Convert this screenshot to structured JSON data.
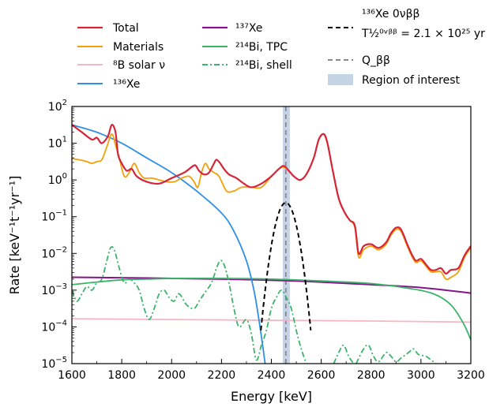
{
  "chart_data": {
    "type": "line",
    "xlabel": "Energy [keV]",
    "ylabel": "Rate [keV⁻¹t⁻¹yr⁻¹]",
    "xlim": [
      1600,
      3200
    ],
    "ylim_log10": [
      -5,
      2
    ],
    "y_scale": "log",
    "x_ticks": [
      1600,
      1800,
      2000,
      2200,
      2400,
      2600,
      2800,
      3000,
      3200
    ],
    "x_tick_labels": [
      "1600",
      "1800",
      "2000",
      "2200",
      "2400",
      "2600",
      "2800",
      "3000",
      "3200"
    ],
    "y_tick_powers": [
      2,
      1,
      0,
      -1,
      -2,
      -3,
      -4,
      -5
    ],
    "legend_placement": "above plot",
    "roi": {
      "label": "Region of interest",
      "x0": 2446,
      "x1": 2474,
      "color": "#c5d3e6"
    },
    "q_bb": {
      "label": "Q_ββ",
      "x": 2458,
      "color": "#888888"
    },
    "series": [
      {
        "key": "total",
        "name": "Total",
        "color": "#d62438",
        "width": 2.2,
        "dash": "",
        "points": [
          [
            1600,
            1.5
          ],
          [
            1640,
            1.3
          ],
          [
            1680,
            1.1
          ],
          [
            1700,
            1.15
          ],
          [
            1720,
            1.0
          ],
          [
            1745,
            1.2
          ],
          [
            1760,
            1.5
          ],
          [
            1775,
            1.3
          ],
          [
            1785,
            0.7
          ],
          [
            1800,
            0.45
          ],
          [
            1820,
            0.25
          ],
          [
            1840,
            0.3
          ],
          [
            1860,
            0.1
          ],
          [
            1900,
            -0.05
          ],
          [
            1950,
            -0.1
          ],
          [
            2000,
            0.05
          ],
          [
            2050,
            0.2
          ],
          [
            2080,
            0.35
          ],
          [
            2095,
            0.4
          ],
          [
            2110,
            0.25
          ],
          [
            2130,
            0.15
          ],
          [
            2150,
            0.2
          ],
          [
            2170,
            0.45
          ],
          [
            2180,
            0.55
          ],
          [
            2195,
            0.45
          ],
          [
            2210,
            0.3
          ],
          [
            2230,
            0.15
          ],
          [
            2260,
            0.05
          ],
          [
            2290,
            -0.1
          ],
          [
            2320,
            -0.2
          ],
          [
            2360,
            -0.1
          ],
          [
            2400,
            0.1
          ],
          [
            2430,
            0.3
          ],
          [
            2450,
            0.38
          ],
          [
            2470,
            0.25
          ],
          [
            2490,
            0.1
          ],
          [
            2515,
            0.0
          ],
          [
            2540,
            0.15
          ],
          [
            2570,
            0.6
          ],
          [
            2590,
            1.1
          ],
          [
            2610,
            1.25
          ],
          [
            2625,
            1.0
          ],
          [
            2645,
            0.3
          ],
          [
            2670,
            -0.5
          ],
          [
            2695,
            -0.9
          ],
          [
            2715,
            -1.1
          ],
          [
            2735,
            -1.25
          ],
          [
            2750,
            -2.0
          ],
          [
            2770,
            -1.8
          ],
          [
            2800,
            -1.75
          ],
          [
            2830,
            -1.85
          ],
          [
            2860,
            -1.7
          ],
          [
            2880,
            -1.45
          ],
          [
            2900,
            -1.3
          ],
          [
            2920,
            -1.35
          ],
          [
            2945,
            -1.75
          ],
          [
            2965,
            -2.05
          ],
          [
            2980,
            -2.2
          ],
          [
            3000,
            -2.15
          ],
          [
            3020,
            -2.3
          ],
          [
            3040,
            -2.45
          ],
          [
            3060,
            -2.45
          ],
          [
            3080,
            -2.4
          ],
          [
            3100,
            -2.55
          ],
          [
            3120,
            -2.45
          ],
          [
            3150,
            -2.4
          ],
          [
            3175,
            -2.05
          ],
          [
            3200,
            -1.8
          ]
        ]
      },
      {
        "key": "materials",
        "name": "Materials",
        "color": "#f5a00a",
        "width": 1.8,
        "dash": "",
        "points": [
          [
            1600,
            0.58
          ],
          [
            1630,
            0.55
          ],
          [
            1660,
            0.5
          ],
          [
            1680,
            0.45
          ],
          [
            1700,
            0.5
          ],
          [
            1720,
            0.55
          ],
          [
            1740,
            0.9
          ],
          [
            1760,
            1.25
          ],
          [
            1775,
            0.95
          ],
          [
            1790,
            0.6
          ],
          [
            1810,
            0.1
          ],
          [
            1830,
            0.2
          ],
          [
            1850,
            0.45
          ],
          [
            1870,
            0.2
          ],
          [
            1890,
            0.05
          ],
          [
            1920,
            0.05
          ],
          [
            1950,
            0.0
          ],
          [
            1980,
            -0.05
          ],
          [
            2010,
            -0.05
          ],
          [
            2040,
            0.05
          ],
          [
            2070,
            0.1
          ],
          [
            2090,
            -0.05
          ],
          [
            2105,
            -0.2
          ],
          [
            2120,
            0.2
          ],
          [
            2135,
            0.45
          ],
          [
            2150,
            0.3
          ],
          [
            2170,
            0.2
          ],
          [
            2190,
            0.1
          ],
          [
            2220,
            -0.3
          ],
          [
            2250,
            -0.3
          ],
          [
            2280,
            -0.2
          ],
          [
            2320,
            -0.2
          ],
          [
            2360,
            -0.2
          ],
          [
            2400,
            0.1
          ],
          [
            2430,
            0.3
          ],
          [
            2450,
            0.35
          ],
          [
            2470,
            0.25
          ],
          [
            2490,
            0.1
          ],
          [
            2515,
            0.0
          ],
          [
            2540,
            0.15
          ],
          [
            2570,
            0.6
          ],
          [
            2590,
            1.1
          ],
          [
            2610,
            1.25
          ],
          [
            2625,
            1.0
          ],
          [
            2645,
            0.3
          ],
          [
            2670,
            -0.5
          ],
          [
            2695,
            -0.9
          ],
          [
            2715,
            -1.1
          ],
          [
            2735,
            -1.3
          ],
          [
            2750,
            -2.1
          ],
          [
            2770,
            -1.9
          ],
          [
            2800,
            -1.8
          ],
          [
            2830,
            -1.9
          ],
          [
            2860,
            -1.75
          ],
          [
            2880,
            -1.5
          ],
          [
            2900,
            -1.35
          ],
          [
            2920,
            -1.4
          ],
          [
            2945,
            -1.8
          ],
          [
            2965,
            -2.1
          ],
          [
            2980,
            -2.25
          ],
          [
            3000,
            -2.2
          ],
          [
            3020,
            -2.35
          ],
          [
            3040,
            -2.5
          ],
          [
            3060,
            -2.5
          ],
          [
            3080,
            -2.5
          ],
          [
            3100,
            -2.7
          ],
          [
            3120,
            -2.65
          ],
          [
            3150,
            -2.5
          ],
          [
            3175,
            -2.1
          ],
          [
            3200,
            -1.85
          ]
        ]
      },
      {
        "key": "b8",
        "name": "⁸B solar ν",
        "color": "#f7b6c4",
        "width": 1.8,
        "dash": "",
        "points": [
          [
            1600,
            -3.78
          ],
          [
            2000,
            -3.8
          ],
          [
            2400,
            -3.82
          ],
          [
            2800,
            -3.84
          ],
          [
            3200,
            -3.87
          ]
        ]
      },
      {
        "key": "xe136",
        "name": "¹³⁶Xe",
        "color": "#2e8fe6",
        "width": 1.8,
        "dash": "",
        "points": [
          [
            1600,
            1.5
          ],
          [
            1700,
            1.3
          ],
          [
            1800,
            1.0
          ],
          [
            1900,
            0.6
          ],
          [
            2000,
            0.2
          ],
          [
            2100,
            -0.3
          ],
          [
            2200,
            -0.9
          ],
          [
            2250,
            -1.4
          ],
          [
            2300,
            -2.2
          ],
          [
            2330,
            -3.0
          ],
          [
            2350,
            -3.8
          ],
          [
            2365,
            -4.5
          ],
          [
            2375,
            -5.0
          ]
        ]
      },
      {
        "key": "xe137",
        "name": "¹³⁷Xe",
        "color": "#861589",
        "width": 2.0,
        "dash": "",
        "points": [
          [
            1600,
            -2.65
          ],
          [
            1900,
            -2.67
          ],
          [
            2200,
            -2.7
          ],
          [
            2500,
            -2.75
          ],
          [
            2800,
            -2.85
          ],
          [
            3000,
            -2.93
          ],
          [
            3200,
            -3.08
          ]
        ]
      },
      {
        "key": "bi_tpc",
        "name": "²¹⁴Bi, TPC",
        "color": "#3bb36a",
        "width": 1.8,
        "dash": "",
        "points": [
          [
            1600,
            -2.85
          ],
          [
            1700,
            -2.78
          ],
          [
            1800,
            -2.72
          ],
          [
            1900,
            -2.7
          ],
          [
            2000,
            -2.68
          ],
          [
            2200,
            -2.68
          ],
          [
            2400,
            -2.7
          ],
          [
            2600,
            -2.75
          ],
          [
            2800,
            -2.82
          ],
          [
            2950,
            -2.95
          ],
          [
            3050,
            -3.1
          ],
          [
            3120,
            -3.4
          ],
          [
            3170,
            -3.9
          ],
          [
            3200,
            -4.35
          ]
        ]
      },
      {
        "key": "bi_shell",
        "name": "²¹⁴Bi, shell",
        "color": "#3bb36a",
        "width": 1.8,
        "dash": "7,3,2,3",
        "points": [
          [
            1600,
            -3.0
          ],
          [
            1620,
            -3.3
          ],
          [
            1640,
            -3.1
          ],
          [
            1660,
            -2.9
          ],
          [
            1680,
            -3.0
          ],
          [
            1700,
            -2.8
          ],
          [
            1720,
            -2.7
          ],
          [
            1740,
            -2.2
          ],
          [
            1755,
            -1.85
          ],
          [
            1770,
            -1.9
          ],
          [
            1790,
            -2.4
          ],
          [
            1810,
            -2.8
          ],
          [
            1830,
            -2.7
          ],
          [
            1850,
            -2.8
          ],
          [
            1870,
            -3.0
          ],
          [
            1890,
            -3.5
          ],
          [
            1910,
            -3.8
          ],
          [
            1930,
            -3.5
          ],
          [
            1950,
            -3.1
          ],
          [
            1970,
            -3.0
          ],
          [
            1990,
            -3.2
          ],
          [
            2010,
            -3.3
          ],
          [
            2030,
            -3.1
          ],
          [
            2060,
            -3.4
          ],
          [
            2090,
            -3.5
          ],
          [
            2110,
            -3.3
          ],
          [
            2130,
            -3.1
          ],
          [
            2160,
            -2.8
          ],
          [
            2180,
            -2.4
          ],
          [
            2195,
            -2.2
          ],
          [
            2210,
            -2.3
          ],
          [
            2230,
            -2.8
          ],
          [
            2250,
            -3.5
          ],
          [
            2270,
            -4.0
          ],
          [
            2300,
            -3.8
          ],
          [
            2320,
            -4.2
          ],
          [
            2340,
            -4.9
          ],
          [
            2360,
            -4.5
          ],
          [
            2380,
            -4.1
          ],
          [
            2400,
            -3.5
          ],
          [
            2420,
            -3.2
          ],
          [
            2440,
            -3.0
          ],
          [
            2460,
            -3.2
          ],
          [
            2480,
            -3.5
          ],
          [
            2500,
            -4.1
          ],
          [
            2520,
            -4.6
          ],
          [
            2540,
            -5.0
          ]
        ],
        "points2": [
          [
            2650,
            -5.0
          ],
          [
            2670,
            -4.7
          ],
          [
            2690,
            -4.5
          ],
          [
            2710,
            -4.8
          ],
          [
            2730,
            -5.0
          ]
        ],
        "points3": [
          [
            2740,
            -5.0
          ],
          [
            2770,
            -4.6
          ],
          [
            2790,
            -4.5
          ],
          [
            2810,
            -4.8
          ],
          [
            2830,
            -4.95
          ],
          [
            2860,
            -4.7
          ],
          [
            2880,
            -4.8
          ],
          [
            2900,
            -4.95
          ],
          [
            2920,
            -4.85
          ],
          [
            2950,
            -4.7
          ],
          [
            2970,
            -4.6
          ],
          [
            2990,
            -4.75
          ],
          [
            3020,
            -4.8
          ],
          [
            3040,
            -4.9
          ],
          [
            3060,
            -5.0
          ]
        ]
      },
      {
        "key": "signal",
        "name": "¹³⁶Xe 0νββ",
        "name_line2": "T½⁰ᵛᵝᵝ = 2.1 × 10²⁵ yr",
        "color": "#000000",
        "width": 2.0,
        "dash": "6,4",
        "gauss": {
          "mu": 2458,
          "sigma": 25,
          "peak_log10": -0.62
        }
      }
    ]
  },
  "legend": {
    "col1": [
      "Total",
      "Materials",
      "⁸B solar ν",
      "¹³⁶Xe"
    ],
    "col2": [
      "¹³⁷Xe",
      "²¹⁴Bi, TPC",
      "²¹⁴Bi, shell"
    ],
    "col3_signal_line1": "¹³⁶Xe 0νββ",
    "col3_signal_line2": "T½⁰ᵛᵝᵝ = 2.1 × 10²⁵ yr",
    "col3_q": "Q_ββ",
    "col3_roi": "Region of interest"
  }
}
